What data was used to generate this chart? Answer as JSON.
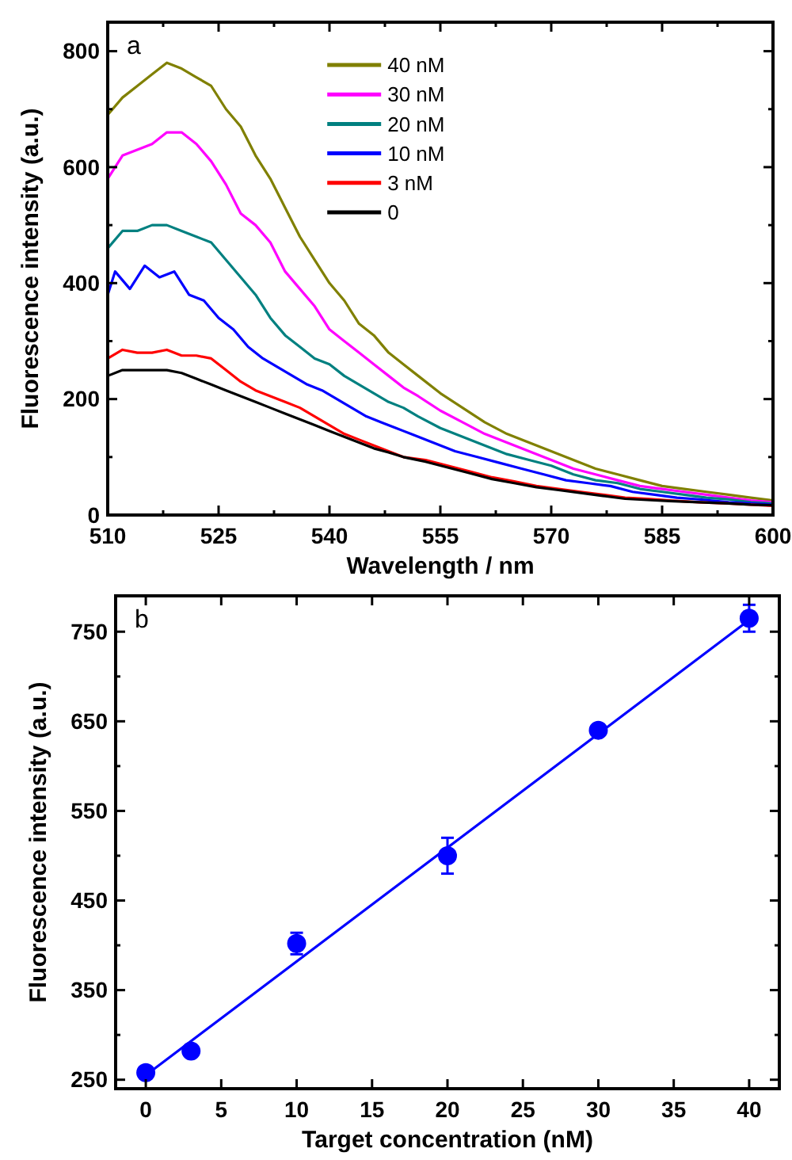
{
  "chart_data": [
    {
      "type": "line",
      "xlabel": "Wavelength / nm",
      "ylabel": "Fluorescence intensity (a.u.)",
      "annotations": [
        "a"
      ],
      "xlim": [
        510,
        600
      ],
      "ylim": [
        0,
        850
      ],
      "xticks": [
        510,
        {
          "value": 517.5,
          "label": null
        },
        525,
        {
          "value": 532.5,
          "label": null
        },
        540,
        {
          "value": 547.5,
          "label": null
        },
        555,
        {
          "value": 562.5,
          "label": null
        },
        570,
        {
          "value": 577.5,
          "label": null
        },
        585,
        {
          "value": 592.5,
          "label": null
        },
        600
      ],
      "yticks": [
        0,
        {
          "value": 100,
          "label": null
        },
        200,
        {
          "value": 300,
          "label": null
        },
        400,
        {
          "value": 500,
          "label": null
        },
        600,
        {
          "value": 700,
          "label": null
        },
        800
      ],
      "grid": false,
      "legend": "top",
      "line_style": "solid",
      "series": [
        {
          "name": "40 nM",
          "color": "#808000",
          "x": [
            510,
            512,
            514,
            516,
            518,
            520,
            522,
            524,
            526,
            528,
            530,
            532,
            534,
            536,
            538,
            540,
            542,
            544,
            546,
            548,
            550,
            552,
            555,
            558,
            561,
            564,
            567,
            570,
            573,
            576,
            579,
            582,
            585,
            588,
            591,
            594,
            597,
            600
          ],
          "values": [
            690,
            720,
            740,
            760,
            780,
            770,
            755,
            740,
            700,
            670,
            620,
            580,
            530,
            480,
            440,
            400,
            370,
            330,
            310,
            280,
            260,
            240,
            210,
            185,
            160,
            140,
            125,
            110,
            95,
            80,
            70,
            60,
            50,
            45,
            40,
            35,
            30,
            25
          ]
        },
        {
          "name": "30 nM",
          "color": "#ff00ff",
          "x": [
            510,
            512,
            514,
            516,
            518,
            520,
            522,
            524,
            526,
            528,
            530,
            532,
            534,
            536,
            538,
            540,
            542,
            544,
            546,
            548,
            550,
            552,
            555,
            558,
            561,
            564,
            567,
            570,
            573,
            576,
            579,
            582,
            585,
            588,
            591,
            594,
            597,
            600
          ],
          "values": [
            580,
            620,
            630,
            640,
            660,
            660,
            640,
            610,
            570,
            520,
            500,
            470,
            420,
            390,
            360,
            320,
            300,
            280,
            260,
            240,
            220,
            205,
            180,
            160,
            140,
            125,
            110,
            95,
            80,
            70,
            60,
            50,
            45,
            40,
            35,
            30,
            25,
            22
          ]
        },
        {
          "name": "20 nM",
          "color": "#008080",
          "x": [
            510,
            512,
            514,
            516,
            518,
            520,
            522,
            524,
            526,
            528,
            530,
            532,
            534,
            536,
            538,
            540,
            542,
            544,
            546,
            548,
            550,
            552,
            555,
            558,
            561,
            564,
            567,
            570,
            573,
            576,
            579,
            582,
            585,
            588,
            591,
            594,
            597,
            600
          ],
          "values": [
            460,
            490,
            490,
            500,
            500,
            490,
            480,
            470,
            440,
            410,
            380,
            340,
            310,
            290,
            270,
            260,
            240,
            225,
            210,
            195,
            185,
            170,
            150,
            135,
            120,
            105,
            95,
            85,
            70,
            60,
            55,
            45,
            40,
            35,
            30,
            27,
            22,
            20
          ]
        },
        {
          "name": "10 nM",
          "color": "#0000ff",
          "x": [
            510,
            511,
            513,
            515,
            517,
            519,
            521,
            523,
            525,
            527,
            529,
            531,
            533,
            535,
            537,
            539,
            541,
            543,
            545,
            547,
            549,
            551,
            554,
            557,
            560,
            563,
            566,
            569,
            572,
            575,
            578,
            581,
            584,
            587,
            590,
            594,
            597,
            600
          ],
          "values": [
            380,
            420,
            390,
            430,
            410,
            420,
            380,
            370,
            340,
            320,
            290,
            270,
            255,
            240,
            225,
            215,
            200,
            185,
            170,
            160,
            150,
            140,
            125,
            110,
            100,
            90,
            80,
            70,
            60,
            55,
            50,
            40,
            35,
            30,
            27,
            22,
            20,
            18
          ]
        },
        {
          "name": "3 nM",
          "color": "#ff0000",
          "x": [
            510,
            512,
            514,
            516,
            518,
            520,
            522,
            524,
            526,
            528,
            530,
            532,
            534,
            536,
            538,
            540,
            542,
            544,
            546,
            548,
            550,
            553,
            556,
            559,
            562,
            565,
            568,
            571,
            574,
            577,
            580,
            583,
            586,
            590,
            594,
            597,
            600
          ],
          "values": [
            270,
            285,
            280,
            280,
            285,
            275,
            275,
            270,
            250,
            230,
            215,
            205,
            195,
            185,
            170,
            155,
            140,
            130,
            120,
            110,
            100,
            95,
            85,
            75,
            65,
            58,
            50,
            45,
            40,
            35,
            30,
            28,
            25,
            22,
            20,
            18,
            16
          ]
        },
        {
          "name": "0",
          "color": "#000000",
          "x": [
            510,
            512,
            514,
            516,
            518,
            520,
            522,
            524,
            526,
            528,
            530,
            532,
            534,
            536,
            538,
            540,
            542,
            544,
            546,
            548,
            550,
            553,
            556,
            559,
            562,
            565,
            568,
            571,
            574,
            577,
            580,
            583,
            586,
            590,
            594,
            597,
            600
          ],
          "values": [
            240,
            250,
            250,
            250,
            250,
            245,
            235,
            225,
            215,
            205,
            195,
            185,
            175,
            165,
            155,
            145,
            135,
            125,
            115,
            108,
            100,
            92,
            82,
            72,
            62,
            55,
            48,
            43,
            38,
            33,
            28,
            26,
            24,
            22,
            20,
            18,
            17
          ]
        }
      ]
    },
    {
      "type": "scatter",
      "xlabel": "Target concentration (nM)",
      "ylabel": "Fluorescence intensity (a.u.)",
      "annotations": [
        "b"
      ],
      "xlim": [
        -2,
        42
      ],
      "ylim": [
        240,
        790
      ],
      "xticks": [
        0,
        5,
        10,
        15,
        20,
        25,
        30,
        35,
        40
      ],
      "yticks": [
        250,
        {
          "value": 300,
          "label": null
        },
        350,
        {
          "value": 400,
          "label": null
        },
        450,
        {
          "value": 500,
          "label": null
        },
        550,
        {
          "value": 600,
          "label": null
        },
        650,
        {
          "value": 700,
          "label": null
        },
        750
      ],
      "grid": false,
      "legend": false,
      "line_style": "solid",
      "series": [
        {
          "color": "#0000ff",
          "marker": "circle",
          "x": [
            0,
            3,
            10,
            20,
            30,
            40
          ],
          "values": [
            258,
            282,
            402,
            500,
            640,
            765
          ],
          "errors": [
            6,
            6,
            12,
            20,
            6,
            15
          ]
        },
        {
          "type": "line",
          "color": "#0000ff",
          "x": [
            0,
            40
          ],
          "values": [
            255,
            763
          ]
        }
      ]
    }
  ]
}
